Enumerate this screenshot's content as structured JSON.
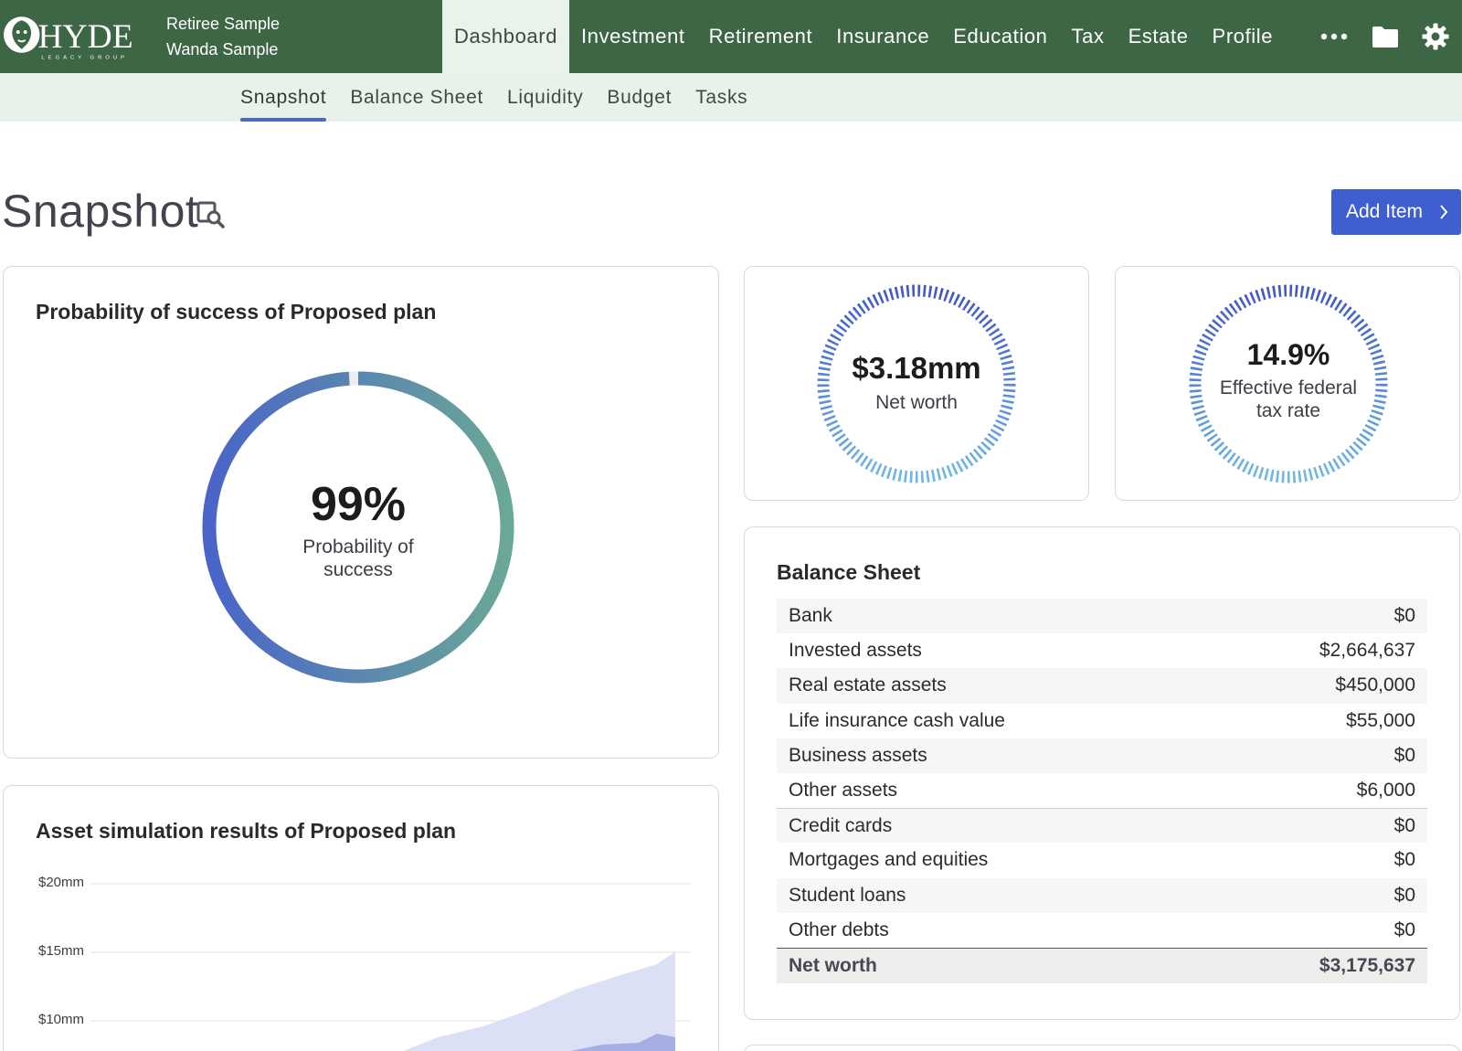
{
  "header": {
    "logo_text": "HYDE",
    "logo_subtext": "LEGACY GROUP",
    "client_1": "Retiree Sample",
    "client_2": "Wanda Sample"
  },
  "nav": {
    "items": [
      {
        "label": "Dashboard",
        "active": true
      },
      {
        "label": "Investment"
      },
      {
        "label": "Retirement"
      },
      {
        "label": "Insurance"
      },
      {
        "label": "Education"
      },
      {
        "label": "Tax"
      },
      {
        "label": "Estate"
      },
      {
        "label": "Profile"
      }
    ],
    "icons": [
      "more-icon",
      "folder-icon",
      "gear-icon"
    ]
  },
  "subnav": {
    "items": [
      {
        "label": "Snapshot",
        "active": true
      },
      {
        "label": "Balance Sheet"
      },
      {
        "label": "Liquidity"
      },
      {
        "label": "Budget"
      },
      {
        "label": "Tasks"
      }
    ]
  },
  "page": {
    "title": "Snapshot",
    "add_button": "Add Item"
  },
  "probability_card": {
    "title": "Probability of success of Proposed plan",
    "value": "99%",
    "label_line1": "Probability of",
    "label_line2": "success",
    "fraction": 0.99
  },
  "net_worth_card": {
    "value": "$3.18mm",
    "label": "Net worth"
  },
  "tax_card": {
    "value": "14.9%",
    "label_line1": "Effective federal",
    "label_line2": "tax rate"
  },
  "balance_sheet": {
    "title": "Balance Sheet",
    "rows": [
      {
        "label": "Bank",
        "value": "$0"
      },
      {
        "label": "Invested assets",
        "value": "$2,664,637"
      },
      {
        "label": "Real estate assets",
        "value": "$450,000"
      },
      {
        "label": "Life insurance cash value",
        "value": "$55,000"
      },
      {
        "label": "Business assets",
        "value": "$0"
      },
      {
        "label": "Other assets",
        "value": "$6,000"
      },
      {
        "label": "Credit cards",
        "value": "$0"
      },
      {
        "label": "Mortgages and equities",
        "value": "$0"
      },
      {
        "label": "Student loans",
        "value": "$0"
      },
      {
        "label": "Other debts",
        "value": "$0"
      }
    ],
    "total": {
      "label": "Net worth",
      "value": "$3,175,637"
    }
  },
  "simulation_card": {
    "title": "Asset simulation results of Proposed plan",
    "y_ticks": [
      "$20mm",
      "$15mm",
      "$10mm"
    ]
  },
  "colors": {
    "nav_green": "#3d6644",
    "accent_blue": "#3f5fd1",
    "gauge_start": "#4a64c9",
    "gauge_end": "#6aa896"
  }
}
